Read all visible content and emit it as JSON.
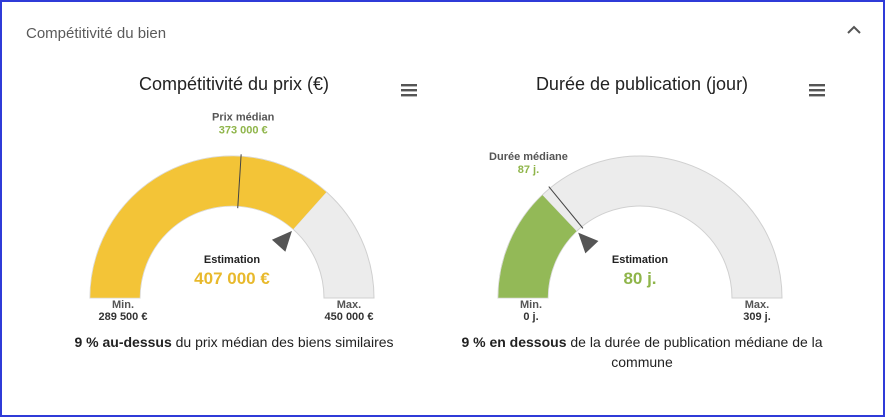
{
  "header": {
    "title": "Compétitivité du bien"
  },
  "icons": {
    "collapse": "chevron-up-icon",
    "menu": "hamburger-menu-icon"
  },
  "colors": {
    "price": "#f3c437",
    "duration": "#93b957",
    "rest": "#ececec",
    "accent_text": "#8fb54a"
  },
  "chart_data": [
    {
      "type": "gauge",
      "title": "Compétitivité du prix (€)",
      "min": 289500,
      "max": 450000,
      "median": 373000,
      "estimation": 407000,
      "median_label": "Prix médian",
      "median_text": "373 000 €",
      "estimation_label": "Estimation",
      "estimation_text": "407 000 €",
      "min_label": "Min.",
      "min_text": "289 500 €",
      "max_label": "Max.",
      "max_text": "450 000 €",
      "summary_bold": "9 % au-dessus",
      "summary_rest": " du prix médian des biens similaires"
    },
    {
      "type": "gauge",
      "title": "Durée de publication (jour)",
      "min": 0,
      "max": 309,
      "median": 87,
      "estimation": 80,
      "median_label": "Durée médiane",
      "median_text": "87 j.",
      "estimation_label": "Estimation",
      "estimation_text": "80 j.",
      "min_label": "Min.",
      "min_text": "0 j.",
      "max_label": "Max.",
      "max_text": "309 j.",
      "summary_bold": "9 % en dessous",
      "summary_rest": " de la durée de publication médiane de la commune"
    }
  ]
}
